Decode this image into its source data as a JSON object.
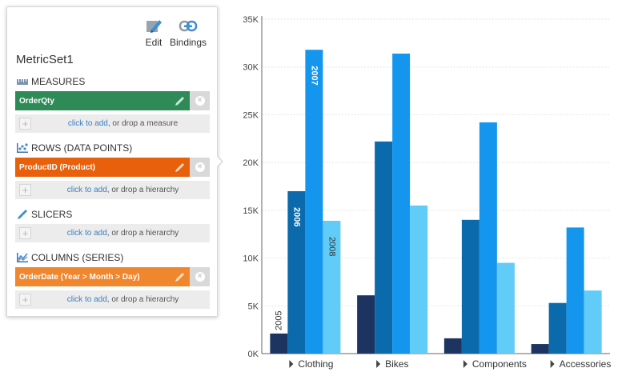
{
  "toolbar": {
    "edit_label": "Edit",
    "bindings_label": "Bindings"
  },
  "metric_set": {
    "name": "MetricSet1",
    "measures": {
      "heading": "MEASURES",
      "item": {
        "label": "OrderQty",
        "color": "#2e8b57"
      },
      "adder": {
        "link": "click to add",
        "rest": ", or drop a measure"
      }
    },
    "rows": {
      "heading": "ROWS (DATA POINTS)",
      "item": {
        "label": "ProductID (Product)",
        "color": "#e8600c"
      },
      "adder": {
        "link": "click to add",
        "rest": ", or drop a hierarchy"
      }
    },
    "slicers": {
      "heading": "SLICERS",
      "adder": {
        "link": "click to add",
        "rest": ", or drop a hierarchy"
      }
    },
    "columns": {
      "heading": "COLUMNS (SERIES)",
      "item": {
        "label": "OrderDate (Year > Month > Day)",
        "color": "#f0862d"
      },
      "adder": {
        "link": "click to add",
        "rest": ", or drop a hierarchy"
      }
    }
  },
  "chart_data": {
    "type": "bar",
    "categories": [
      "Clothing",
      "Bikes",
      "Components",
      "Accessories"
    ],
    "series": [
      {
        "name": "2005",
        "color": "#1d3461",
        "values": [
          2100,
          6100,
          1600,
          1000
        ]
      },
      {
        "name": "2006",
        "color": "#0a6aab",
        "values": [
          17000,
          22200,
          14000,
          5300
        ]
      },
      {
        "name": "2007",
        "color": "#1596ee",
        "values": [
          31800,
          31400,
          24200,
          13200
        ]
      },
      {
        "name": "2008",
        "color": "#60ccf7",
        "values": [
          13900,
          15500,
          9500,
          6600
        ]
      }
    ],
    "yticks": [
      "0K",
      "5K",
      "10K",
      "15K",
      "20K",
      "25K",
      "30K",
      "35K"
    ],
    "ylim": [
      0,
      35000
    ],
    "grid": true,
    "series_labels_on_first_category": true
  }
}
